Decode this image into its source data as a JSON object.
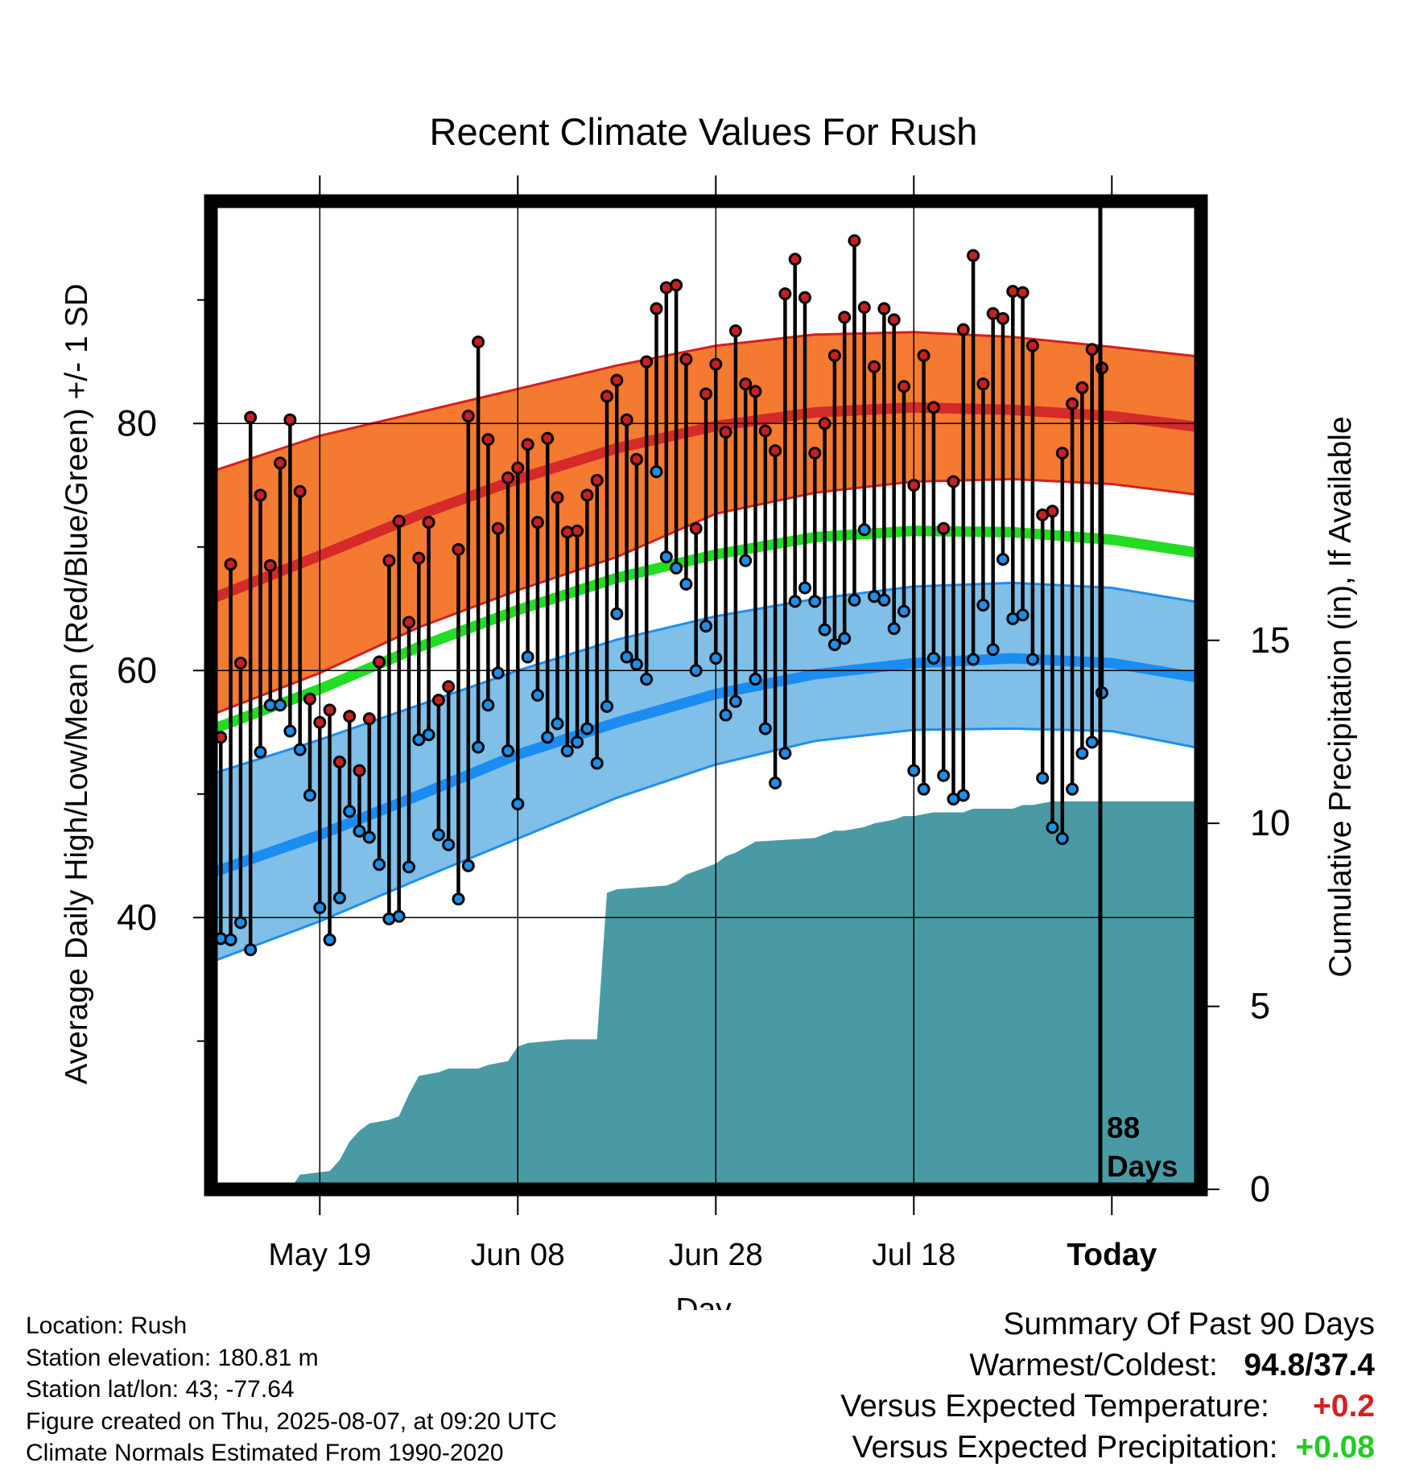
{
  "chart_data": {
    "type": "line",
    "title": "Recent Climate Values For Rush",
    "xlabel": "Day",
    "ylabel": "Average Daily High/Low/Mean (Red/Blue/Green) +/- 1 SD",
    "y2label": "Cumulative Precipitation (in), If Available",
    "x_tick_labels": [
      "May 19",
      "Jun 08",
      "Jun 28",
      "Jul 18",
      "Today"
    ],
    "x_ticks_day": [
      0,
      20,
      40,
      60,
      80
    ],
    "xlim_day": [
      -11,
      89
    ],
    "ylim": [
      18,
      98
    ],
    "y_tick_labels": [
      "40",
      "60",
      "80"
    ],
    "y_ticks": [
      40,
      60,
      80
    ],
    "y_minor_ticks": [
      30,
      50,
      70,
      90
    ],
    "y2_tick_labels": [
      "0",
      "5",
      "10",
      "15"
    ],
    "y2_ticks": [
      0,
      5,
      10,
      15
    ],
    "y2lim": [
      0,
      27
    ],
    "marker_label": [
      "88",
      "Days"
    ],
    "colors": {
      "high_band": "#f37a30",
      "high_edge": "#d42020",
      "high_mean": "#d42a2a",
      "low_band": "#7fbfe8",
      "low_edge": "#1e8fef",
      "low_mean": "#1a8cf2",
      "mean": "#22dd22",
      "precip": "#4a9aa5",
      "high_point": "#c82020",
      "low_point": "#1e8fe8"
    },
    "normals": {
      "day": [
        -11,
        0,
        10,
        20,
        30,
        40,
        50,
        60,
        70,
        80,
        89
      ],
      "high_mean": [
        65.8,
        69.3,
        72.6,
        75.5,
        78.0,
        79.8,
        80.9,
        81.3,
        81.1,
        80.6,
        79.7
      ],
      "high_upper": [
        76.1,
        79.0,
        80.9,
        82.8,
        84.7,
        86.3,
        87.2,
        87.4,
        87.0,
        86.2,
        85.4
      ],
      "high_lower": [
        56.4,
        59.8,
        63.5,
        66.5,
        69.2,
        72.7,
        74.4,
        75.3,
        75.5,
        75.1,
        74.2
      ],
      "mean": [
        55.2,
        58.5,
        61.9,
        64.9,
        67.5,
        69.4,
        70.8,
        71.3,
        71.2,
        70.6,
        69.5
      ],
      "low_mean": [
        43.6,
        46.7,
        49.9,
        53.2,
        55.8,
        58.1,
        59.7,
        60.6,
        61.0,
        60.6,
        59.4
      ],
      "low_upper": [
        51.6,
        54.4,
        57.2,
        60.0,
        62.5,
        64.4,
        65.8,
        66.8,
        67.1,
        66.7,
        65.5
      ],
      "low_lower": [
        36.4,
        39.7,
        43.1,
        46.4,
        49.7,
        52.4,
        54.3,
        55.2,
        55.3,
        55.1,
        53.7
      ]
    },
    "series": [
      {
        "name": "High",
        "day": [
          -10,
          -9,
          -8,
          -7,
          -6,
          -5,
          -4,
          -3,
          -2,
          -1,
          0,
          1,
          2,
          3,
          4,
          5,
          6,
          7,
          8,
          9,
          10,
          11,
          12,
          13,
          14,
          15,
          16,
          17,
          18,
          19,
          20,
          21,
          22,
          23,
          24,
          25,
          26,
          27,
          28,
          29,
          30,
          31,
          32,
          33,
          34,
          35,
          36,
          37,
          38,
          39,
          40,
          41,
          42,
          43,
          44,
          45,
          46,
          47,
          48,
          49,
          50,
          51,
          52,
          53,
          54,
          55,
          56,
          57,
          58,
          59,
          60,
          61,
          62,
          63,
          64,
          65,
          66,
          67,
          68,
          69,
          70,
          71,
          72,
          73,
          74,
          75,
          76,
          77,
          78,
          79
        ],
        "values": [
          54.6,
          68.6,
          60.6,
          80.5,
          74.2,
          68.5,
          76.8,
          80.3,
          74.5,
          57.7,
          55.8,
          56.8,
          52.6,
          56.3,
          51.9,
          56.1,
          60.7,
          68.9,
          72.1,
          63.9,
          69.1,
          72.0,
          57.6,
          58.7,
          69.8,
          80.6,
          86.6,
          78.7,
          71.5,
          75.6,
          76.4,
          78.3,
          72.0,
          78.8,
          74.0,
          71.2,
          71.3,
          74.2,
          75.4,
          82.2,
          83.5,
          80.3,
          77.1,
          85.0,
          89.3,
          91.0,
          91.2,
          85.2,
          71.5,
          82.4,
          84.8,
          79.3,
          87.5,
          83.2,
          82.6,
          79.4,
          77.8,
          90.5,
          93.3,
          90.2,
          77.6,
          80.0,
          85.5,
          88.6,
          94.8,
          89.4,
          84.6,
          89.3,
          88.4,
          83.0,
          75.0,
          85.5,
          81.3,
          71.5,
          75.3,
          87.6,
          93.6,
          83.2,
          88.9,
          88.5,
          90.7,
          90.6,
          86.3,
          72.6,
          72.9,
          77.6,
          81.6,
          82.9,
          86.0,
          84.5
        ]
      },
      {
        "name": "Low",
        "day": [
          -10,
          -9,
          -8,
          -7,
          -6,
          -5,
          -4,
          -3,
          -2,
          -1,
          0,
          1,
          2,
          3,
          4,
          5,
          6,
          7,
          8,
          9,
          10,
          11,
          12,
          13,
          14,
          15,
          16,
          17,
          18,
          19,
          20,
          21,
          22,
          23,
          24,
          25,
          26,
          27,
          28,
          29,
          30,
          31,
          32,
          33,
          34,
          35,
          36,
          37,
          38,
          39,
          40,
          41,
          42,
          43,
          44,
          45,
          46,
          47,
          48,
          49,
          50,
          51,
          52,
          53,
          54,
          55,
          56,
          57,
          58,
          59,
          60,
          61,
          62,
          63,
          64,
          65,
          66,
          67,
          68,
          69,
          70,
          71,
          72,
          73,
          74,
          75,
          76,
          77,
          78,
          79
        ],
        "values": [
          38.3,
          38.2,
          39.6,
          37.4,
          53.4,
          57.2,
          57.2,
          55.1,
          53.6,
          49.9,
          40.8,
          38.2,
          41.6,
          48.6,
          47.0,
          46.5,
          44.3,
          39.9,
          40.1,
          44.1,
          54.4,
          54.8,
          46.7,
          45.9,
          41.5,
          44.2,
          53.8,
          57.2,
          59.8,
          53.5,
          49.2,
          61.1,
          58.0,
          54.6,
          55.7,
          53.5,
          54.2,
          55.3,
          52.5,
          57.1,
          64.6,
          61.1,
          60.5,
          59.3,
          76.1,
          69.2,
          68.3,
          67.0,
          60.0,
          63.6,
          61.0,
          56.4,
          57.5,
          68.9,
          59.3,
          55.3,
          50.9,
          53.3,
          65.6,
          66.7,
          65.6,
          63.3,
          62.1,
          62.6,
          65.7,
          71.4,
          66.0,
          65.7,
          63.4,
          64.8,
          51.9,
          50.4,
          61.0,
          51.5,
          49.6,
          49.9,
          60.9,
          65.3,
          61.7,
          69.0,
          64.2,
          64.5,
          60.9,
          51.3,
          47.3,
          46.4,
          50.4,
          53.3,
          54.2,
          58.2
        ]
      },
      {
        "name": "Cumulative Precipitation",
        "day": [
          -11,
          -3,
          -2,
          1,
          2,
          3,
          4,
          5,
          7,
          8,
          9,
          10,
          12,
          13,
          16,
          17,
          19,
          20,
          21,
          25,
          28,
          29,
          30,
          35,
          36,
          37,
          40,
          41,
          42,
          44,
          50,
          51,
          52,
          53,
          55,
          56,
          58,
          59,
          60,
          62,
          63,
          65,
          66,
          68,
          70,
          71,
          72,
          74,
          89
        ],
        "values": [
          0,
          0,
          0.4,
          0.5,
          0.8,
          1.3,
          1.6,
          1.8,
          1.9,
          2.0,
          2.6,
          3.1,
          3.2,
          3.3,
          3.3,
          3.4,
          3.5,
          3.9,
          4.0,
          4.1,
          4.1,
          8.1,
          8.2,
          8.3,
          8.4,
          8.6,
          8.9,
          9.1,
          9.2,
          9.5,
          9.6,
          9.7,
          9.8,
          9.8,
          9.9,
          10.0,
          10.1,
          10.2,
          10.2,
          10.3,
          10.3,
          10.3,
          10.4,
          10.4,
          10.4,
          10.5,
          10.5,
          10.6,
          10.6
        ]
      }
    ],
    "grid": true
  },
  "info": {
    "location": "Location: Rush",
    "elevation": "Station elevation: 180.81 m",
    "latlon": "Station lat/lon: 43; -77.64",
    "created": "Figure created on Thu, 2025-08-07, at 09:20 UTC",
    "normals": "Climate Normals Estimated From 1990-2020"
  },
  "summary": {
    "heading": "Summary Of Past 90 Days",
    "warm_cold_label": "Warmest/Coldest:",
    "warm_cold_value": "94.8/37.4",
    "temp_label": "Versus Expected Temperature:",
    "temp_value": "+0.2",
    "temp_color": "#d42020",
    "precip_label": "Versus Expected Precipitation:",
    "precip_value": "+0.08",
    "precip_color": "#22cc22"
  }
}
